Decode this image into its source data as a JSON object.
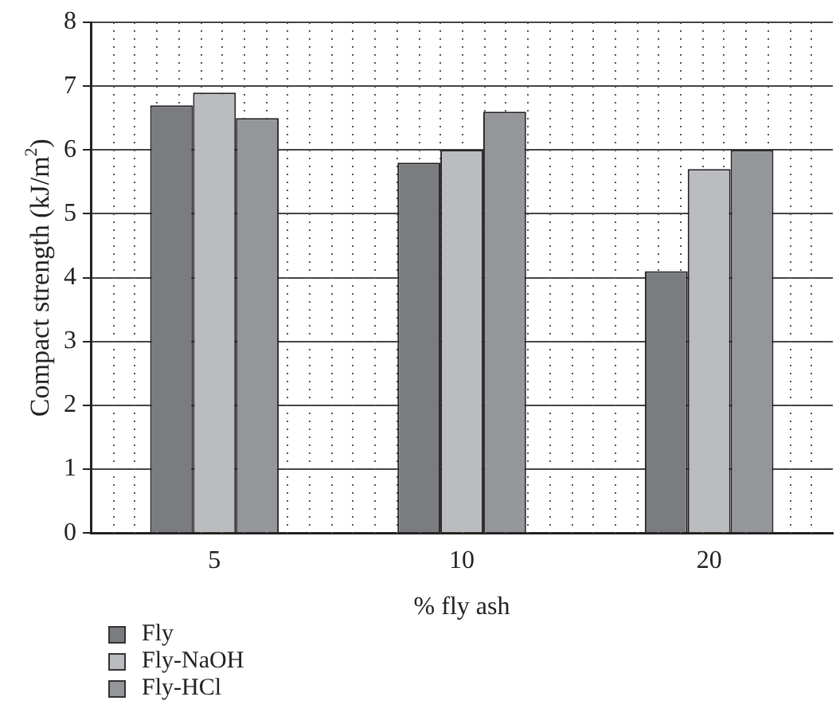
{
  "chart_data": {
    "type": "bar",
    "xlabel": "% fly ash",
    "ylabel": "Compact strength (kJ/m$^{2}$)",
    "categories": [
      "5",
      "10",
      "20"
    ],
    "series": [
      {
        "name": "Fly",
        "color": "#7b7c80",
        "values": [
          6.7,
          5.8,
          4.1
        ]
      },
      {
        "name": "Fly-NaOH",
        "color": "#bbbcc0",
        "values": [
          6.9,
          6.0,
          5.7
        ]
      },
      {
        "name": "Fly-HCl",
        "color": "#95969a",
        "values": [
          6.5,
          6.6,
          6.0
        ]
      }
    ],
    "ylim": [
      0,
      8
    ],
    "yticks": [
      0,
      1,
      2,
      3,
      4,
      5,
      6,
      7,
      8
    ],
    "grid": true,
    "legend": "bottom left"
  }
}
